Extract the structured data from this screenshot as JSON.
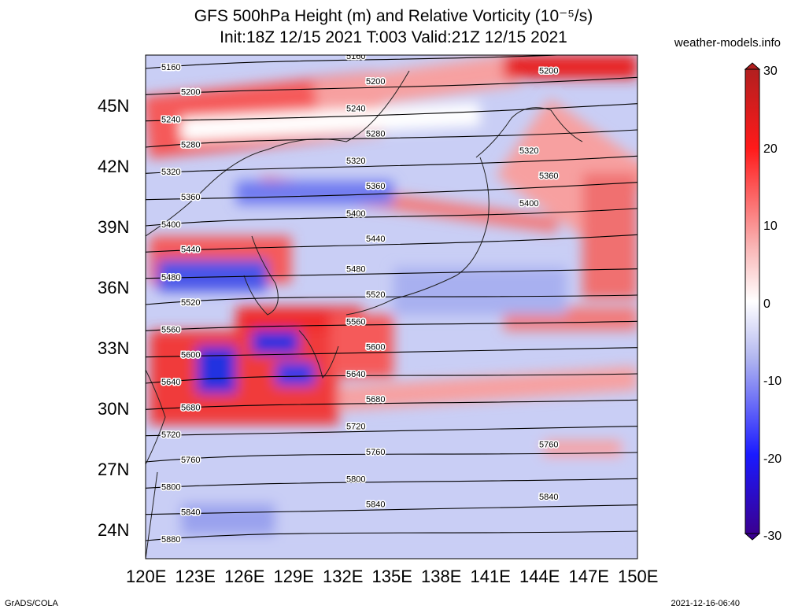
{
  "title": {
    "line1": "GFS 500hPa Height (m) and Relative Vorticity (10⁻⁵/s)",
    "line2": "Init:18Z 12/15 2021 T:003 Valid:21Z 12/15 2021"
  },
  "site": "weather-models.info",
  "footer": {
    "left": "GrADS/COLA",
    "right": "2021-12-16-06:40"
  },
  "lat_labels": [
    "45N",
    "42N",
    "39N",
    "36N",
    "33N",
    "30N",
    "27N",
    "24N"
  ],
  "lon_labels": [
    "120E",
    "123E",
    "126E",
    "129E",
    "132E",
    "135E",
    "138E",
    "141E",
    "144E",
    "147E",
    "150E"
  ],
  "colorbar": {
    "ticks": [
      "30",
      "20",
      "10",
      "0",
      "-10",
      "-20",
      "-30"
    ],
    "colors": {
      "max": "#b21f1f",
      "pos": "#ff1a1a",
      "light_pos": "#f9b3b3",
      "zero": "#ffffff",
      "light_neg": "#b3b8f0",
      "neg": "#1a1aff",
      "min": "#3a0090"
    }
  },
  "contours": [
    {
      "value": 5160,
      "labels": [
        "5160",
        "5160"
      ]
    },
    {
      "value": 5200,
      "labels": [
        "5200",
        "5200",
        "5200"
      ]
    },
    {
      "value": 5240,
      "labels": [
        "5240",
        "5240"
      ]
    },
    {
      "value": 5280,
      "labels": [
        "5280",
        "5280"
      ]
    },
    {
      "value": 5320,
      "labels": [
        "5320",
        "5320",
        "5320"
      ]
    },
    {
      "value": 5360,
      "labels": [
        "5360",
        "5360",
        "5360"
      ]
    },
    {
      "value": 5400,
      "labels": [
        "5400",
        "5400",
        "5400"
      ]
    },
    {
      "value": 5440,
      "labels": [
        "5440",
        "5440"
      ]
    },
    {
      "value": 5480,
      "labels": [
        "5480",
        "5480"
      ]
    },
    {
      "value": 5520,
      "labels": [
        "5520",
        "5520"
      ]
    },
    {
      "value": 5560,
      "labels": [
        "5560",
        "5560"
      ]
    },
    {
      "value": 5600,
      "labels": [
        "5600",
        "5600"
      ]
    },
    {
      "value": 5640,
      "labels": [
        "5640",
        "5640"
      ]
    },
    {
      "value": 5680,
      "labels": [
        "5680",
        "5680"
      ]
    },
    {
      "value": 5720,
      "labels": [
        "5720",
        "5720"
      ]
    },
    {
      "value": 5760,
      "labels": [
        "5760",
        "5760",
        "5760"
      ]
    },
    {
      "value": 5800,
      "labels": [
        "5800",
        "5800"
      ]
    },
    {
      "value": 5840,
      "labels": [
        "5840",
        "5840",
        "5840"
      ]
    },
    {
      "value": 5880,
      "labels": [
        "5880"
      ]
    }
  ]
}
